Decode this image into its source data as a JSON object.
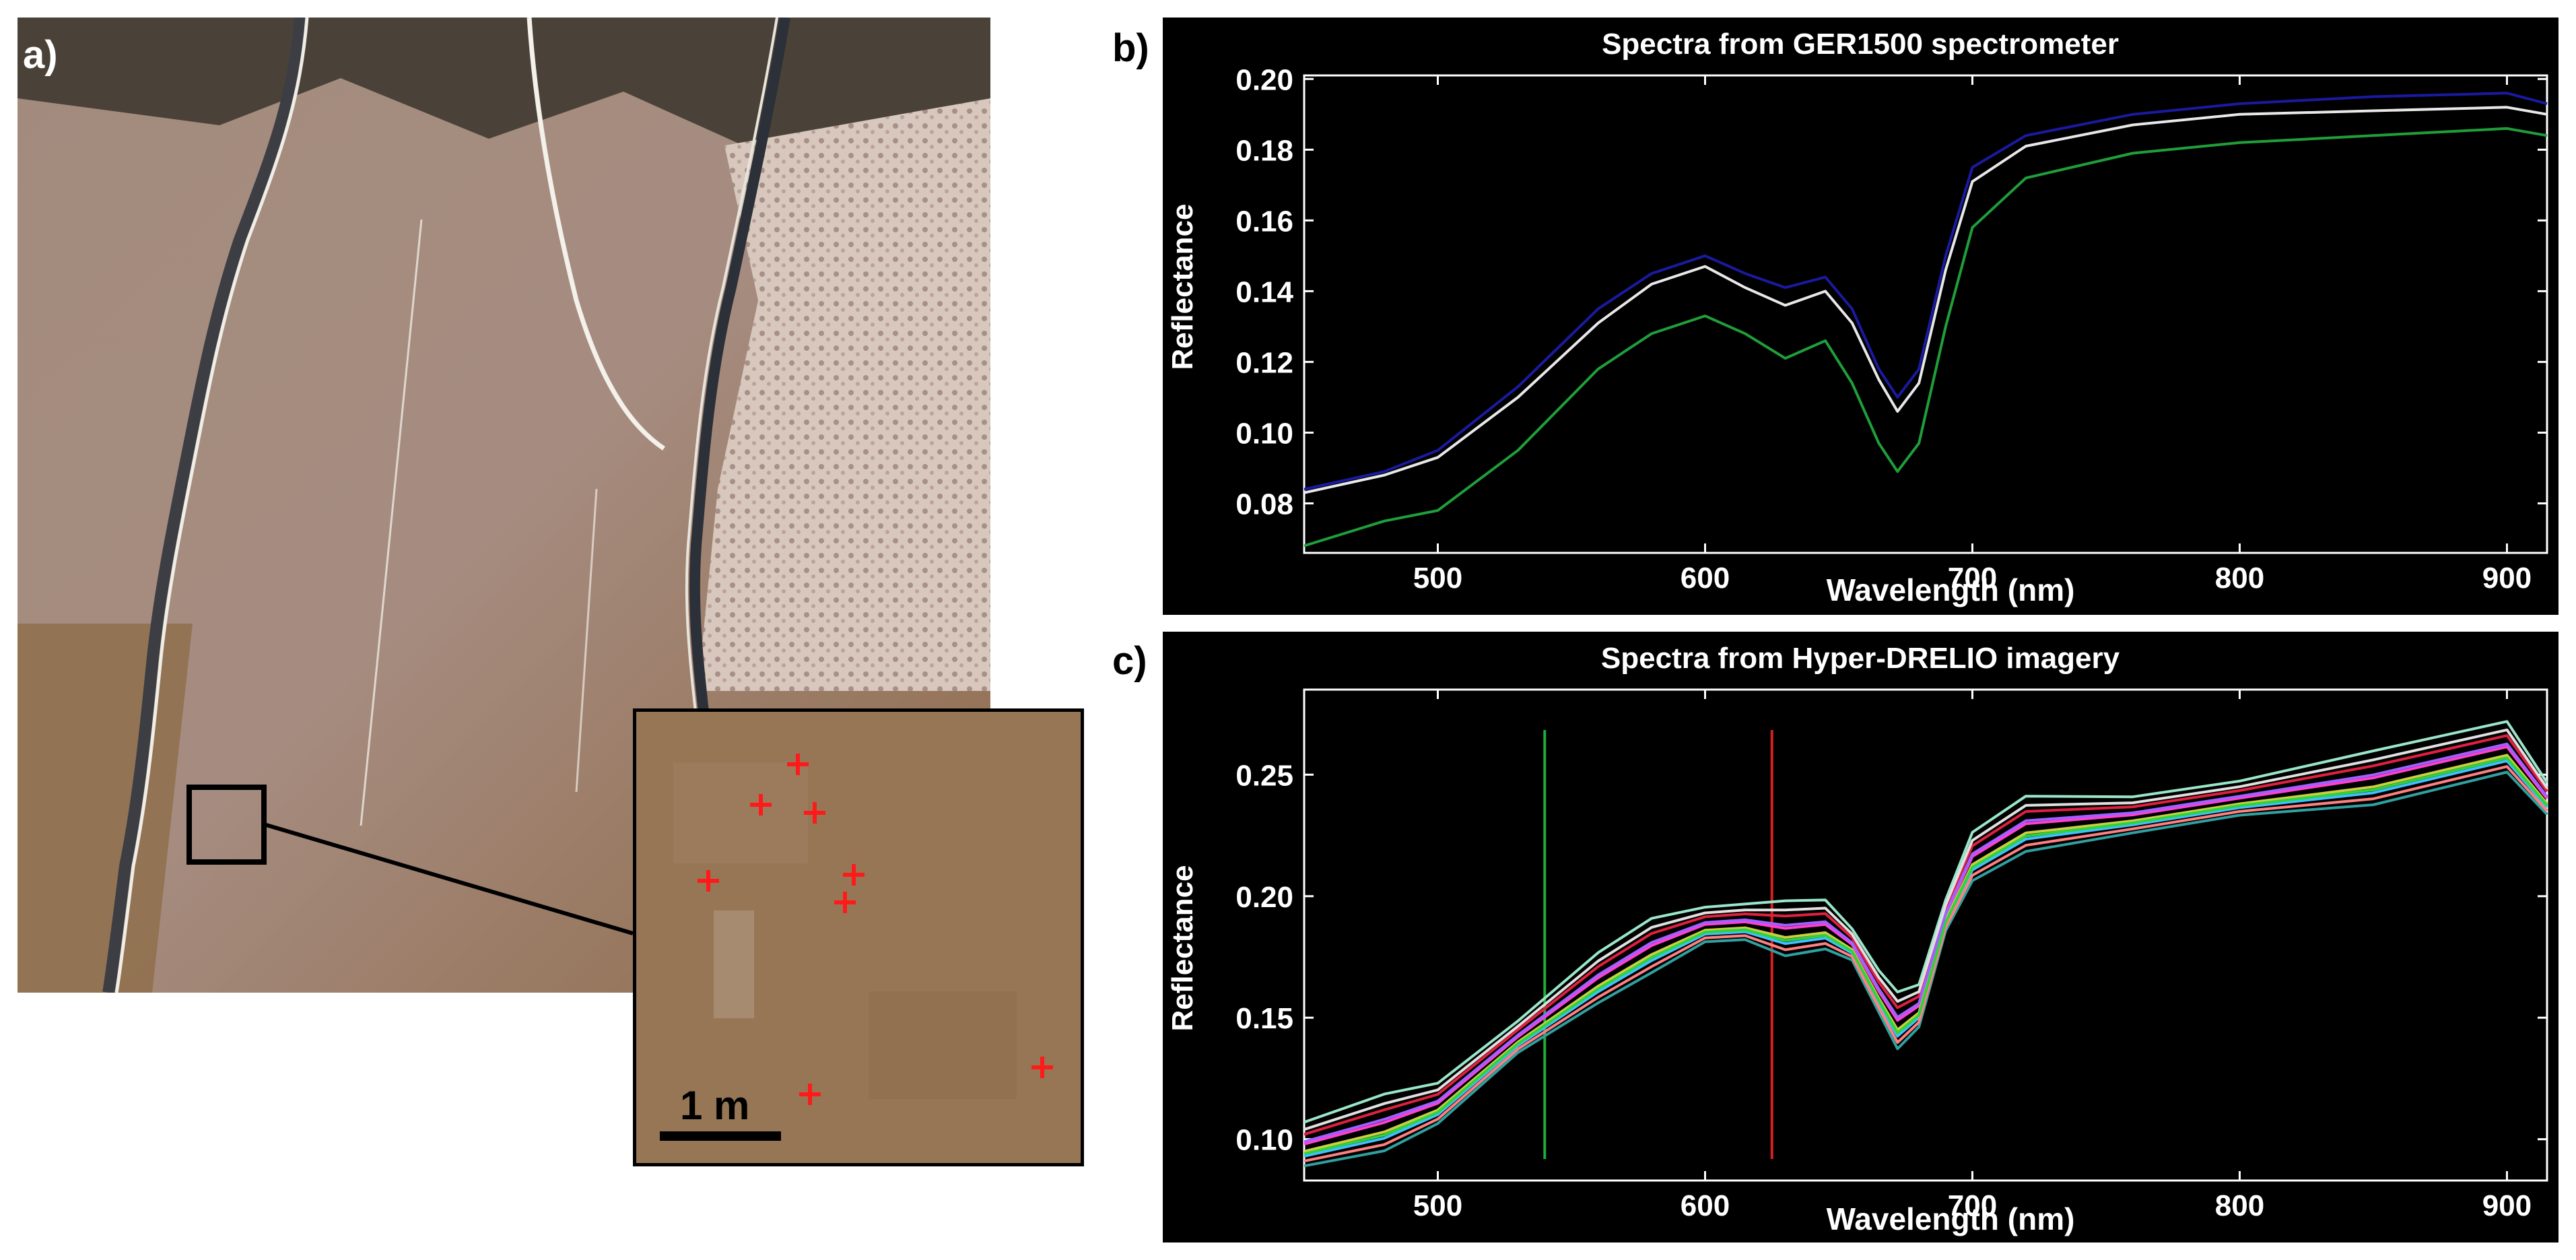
{
  "panels": {
    "a": {
      "label": "a)",
      "scale_bar": "1 m",
      "marker_count": 8
    },
    "b": {
      "label": "b)"
    },
    "c": {
      "label": "c)"
    }
  },
  "chart_data": [
    {
      "type": "line",
      "title": "Spectra from GER1500 spectrometer",
      "xlabel": "Wavelength (nm)",
      "ylabel": "Reflectance",
      "xlim": [
        450,
        915
      ],
      "ylim": [
        0.066,
        0.201
      ],
      "xticks": [
        500,
        600,
        700,
        800,
        900
      ],
      "yticks": [
        0.08,
        0.1,
        0.12,
        0.14,
        0.16,
        0.18,
        0.2
      ],
      "ytick_labels": [
        "0.08",
        "0.10",
        "0.12",
        "0.14",
        "0.16",
        "0.18",
        "0.20"
      ],
      "x": [
        450,
        480,
        500,
        530,
        560,
        580,
        600,
        615,
        630,
        645,
        655,
        665,
        672,
        680,
        690,
        700,
        720,
        760,
        800,
        850,
        900,
        915
      ],
      "series": [
        {
          "name": "blue",
          "color": "#1a1aa0",
          "values": [
            0.084,
            0.089,
            0.095,
            0.113,
            0.135,
            0.145,
            0.15,
            0.145,
            0.141,
            0.144,
            0.135,
            0.118,
            0.11,
            0.118,
            0.15,
            0.175,
            0.184,
            0.19,
            0.193,
            0.195,
            0.196,
            0.193
          ]
        },
        {
          "name": "white",
          "color": "#e8e8e8",
          "values": [
            0.083,
            0.088,
            0.093,
            0.11,
            0.131,
            0.142,
            0.147,
            0.141,
            0.136,
            0.14,
            0.131,
            0.115,
            0.106,
            0.114,
            0.146,
            0.171,
            0.181,
            0.187,
            0.19,
            0.191,
            0.192,
            0.19
          ]
        },
        {
          "name": "green",
          "color": "#1f9e3a",
          "values": [
            0.068,
            0.075,
            0.078,
            0.095,
            0.118,
            0.128,
            0.133,
            0.128,
            0.121,
            0.126,
            0.114,
            0.097,
            0.089,
            0.097,
            0.13,
            0.158,
            0.172,
            0.179,
            0.182,
            0.184,
            0.186,
            0.184
          ]
        }
      ]
    },
    {
      "type": "line",
      "title": "Spectra from Hyper-DRELIO imagery",
      "xlabel": "Wavelength (nm)",
      "ylabel": "Reflectance",
      "xlim": [
        450,
        915
      ],
      "ylim": [
        0.083,
        0.285
      ],
      "xticks": [
        500,
        600,
        700,
        800,
        900
      ],
      "yticks": [
        0.1,
        0.15,
        0.2,
        0.25
      ],
      "ytick_labels": [
        "0.10",
        "0.15",
        "0.20",
        "0.25"
      ],
      "vlines": [
        {
          "x": 540,
          "color": "#1fae3a"
        },
        {
          "x": 625,
          "color": "#d62020"
        }
      ],
      "x": [
        450,
        480,
        500,
        530,
        560,
        580,
        600,
        615,
        630,
        645,
        655,
        665,
        672,
        680,
        690,
        700,
        720,
        760,
        800,
        850,
        900,
        915
      ],
      "base": [
        0.095,
        0.103,
        0.112,
        0.14,
        0.163,
        0.176,
        0.186,
        0.187,
        0.183,
        0.185,
        0.178,
        0.158,
        0.145,
        0.152,
        0.19,
        0.213,
        0.226,
        0.231,
        0.238,
        0.245,
        0.258,
        0.238
      ],
      "series": [
        {
          "name": "s1",
          "color": "#9ae6c8",
          "offset": 0.012
        },
        {
          "name": "s2",
          "color": "#e02040",
          "offset": 0.007
        },
        {
          "name": "s3",
          "color": "#ff40d0",
          "offset": 0.003
        },
        {
          "name": "s4",
          "color": "#40c0ff",
          "offset": -0.002
        },
        {
          "name": "s5",
          "color": "#c8d040",
          "offset": 0.0
        },
        {
          "name": "s6",
          "color": "#30a0a0",
          "offset": -0.006
        },
        {
          "name": "s7",
          "color": "#a060ff",
          "offset": 0.004
        },
        {
          "name": "s8",
          "color": "#ff8080",
          "offset": -0.004
        },
        {
          "name": "s9",
          "color": "#30d040",
          "offset": -0.001
        },
        {
          "name": "s10",
          "color": "#e0e0e0",
          "offset": 0.009
        }
      ]
    }
  ]
}
